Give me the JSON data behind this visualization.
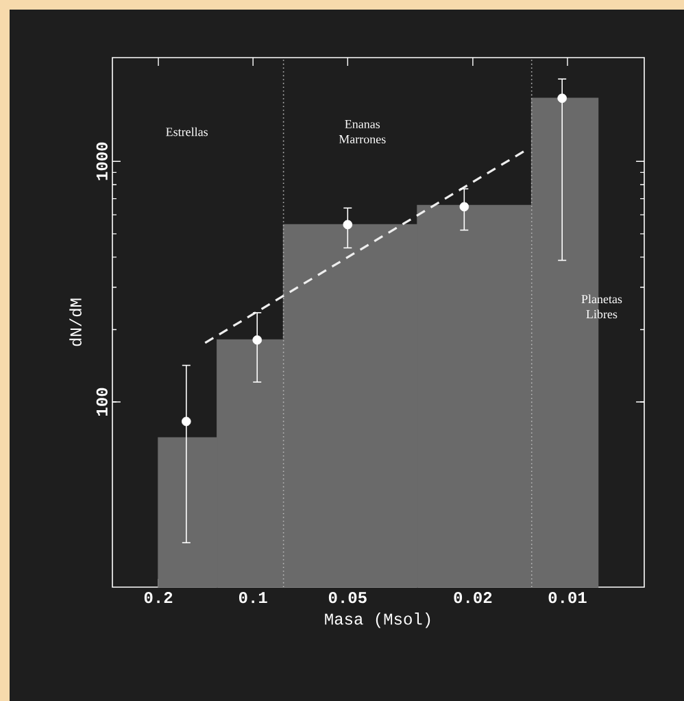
{
  "chart_data": {
    "type": "histogram",
    "xlabel": "Masa (Msol)",
    "ylabel": "dN/dM",
    "log": "xy",
    "xlim": [
      0.28,
      0.0057
    ],
    "ylim": [
      17,
      2700
    ],
    "xticks": [
      0.2,
      0.1,
      0.05,
      0.02,
      0.01
    ],
    "yticks": [
      100,
      1000
    ],
    "series": [
      {
        "bins": [
          0.2,
          0.13,
          0.08,
          0.03,
          0.013,
          0.008
        ],
        "values": [
          71,
          181,
          546,
          656,
          1830
        ],
        "color": "#6a6a6a"
      },
      {
        "type": "scatter",
        "x": [
          0.163,
          0.097,
          0.05,
          0.0213,
          0.0104
        ],
        "values": [
          83,
          181,
          546,
          648,
          1830
        ],
        "errors": [
          [
            26,
            142
          ],
          [
            121,
            235
          ],
          [
            437,
            640
          ],
          [
            518,
            769
          ],
          [
            388,
            2200
          ]
        ],
        "color": "#ffffff",
        "marker": "circle"
      },
      {
        "type": "line",
        "x": [
          0.142,
          0.0136
        ],
        "values": [
          176,
          1111
        ],
        "color": "#eeeeee",
        "line_style": "dashed"
      }
    ],
    "ref_lines": [
      {
        "axis": "x",
        "value": 0.08,
        "color": "#bbbbbb",
        "line_style": "dotted"
      },
      {
        "axis": "x",
        "value": 0.013,
        "color": "#bbbbbb",
        "line_style": "dotted"
      }
    ],
    "annotations": [
      "Estrellas",
      "Enanas Marrones",
      "Planetas Libres"
    ]
  }
}
